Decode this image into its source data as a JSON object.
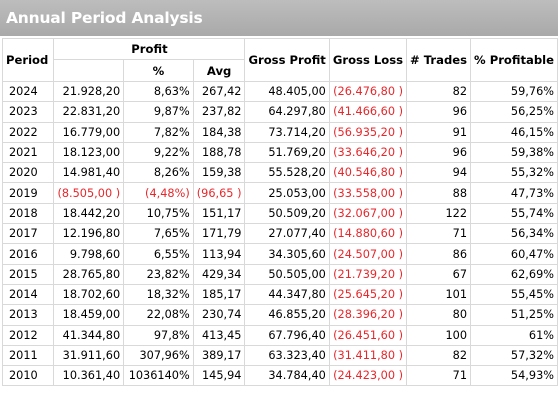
{
  "title": "Annual Period Analysis",
  "headers": {
    "period": "Period",
    "profit": "Profit",
    "pct": "%",
    "avg": "Avg",
    "gross_profit": "Gross Profit",
    "gross_loss": "Gross Loss",
    "trades": "# Trades",
    "pct_profitable": "% Profitable"
  },
  "rows": [
    {
      "period": "2024",
      "profit": "21.928,20",
      "pct": "8,63%",
      "avg": "267,42",
      "gross_profit": "48.405,00",
      "gross_loss": "(26.476,80 )",
      "trades": "82",
      "pct_profitable": "59,76%",
      "neg_profit": false
    },
    {
      "period": "2023",
      "profit": "22.831,20",
      "pct": "9,87%",
      "avg": "237,82",
      "gross_profit": "64.297,80",
      "gross_loss": "(41.466,60 )",
      "trades": "96",
      "pct_profitable": "56,25%",
      "neg_profit": false
    },
    {
      "period": "2022",
      "profit": "16.779,00",
      "pct": "7,82%",
      "avg": "184,38",
      "gross_profit": "73.714,20",
      "gross_loss": "(56.935,20 )",
      "trades": "91",
      "pct_profitable": "46,15%",
      "neg_profit": false
    },
    {
      "period": "2021",
      "profit": "18.123,00",
      "pct": "9,22%",
      "avg": "188,78",
      "gross_profit": "51.769,20",
      "gross_loss": "(33.646,20 )",
      "trades": "96",
      "pct_profitable": "59,38%",
      "neg_profit": false
    },
    {
      "period": "2020",
      "profit": "14.981,40",
      "pct": "8,26%",
      "avg": "159,38",
      "gross_profit": "55.528,20",
      "gross_loss": "(40.546,80 )",
      "trades": "94",
      "pct_profitable": "55,32%",
      "neg_profit": false
    },
    {
      "period": "2019",
      "profit": "(8.505,00 )",
      "pct": "(4,48%)",
      "avg": "(96,65 )",
      "gross_profit": "25.053,00",
      "gross_loss": "(33.558,00 )",
      "trades": "88",
      "pct_profitable": "47,73%",
      "neg_profit": true
    },
    {
      "period": "2018",
      "profit": "18.442,20",
      "pct": "10,75%",
      "avg": "151,17",
      "gross_profit": "50.509,20",
      "gross_loss": "(32.067,00 )",
      "trades": "122",
      "pct_profitable": "55,74%",
      "neg_profit": false
    },
    {
      "period": "2017",
      "profit": "12.196,80",
      "pct": "7,65%",
      "avg": "171,79",
      "gross_profit": "27.077,40",
      "gross_loss": "(14.880,60 )",
      "trades": "71",
      "pct_profitable": "56,34%",
      "neg_profit": false
    },
    {
      "period": "2016",
      "profit": "9.798,60",
      "pct": "6,55%",
      "avg": "113,94",
      "gross_profit": "34.305,60",
      "gross_loss": "(24.507,00 )",
      "trades": "86",
      "pct_profitable": "60,47%",
      "neg_profit": false
    },
    {
      "period": "2015",
      "profit": "28.765,80",
      "pct": "23,82%",
      "avg": "429,34",
      "gross_profit": "50.505,00",
      "gross_loss": "(21.739,20 )",
      "trades": "67",
      "pct_profitable": "62,69%",
      "neg_profit": false
    },
    {
      "period": "2014",
      "profit": "18.702,60",
      "pct": "18,32%",
      "avg": "185,17",
      "gross_profit": "44.347,80",
      "gross_loss": "(25.645,20 )",
      "trades": "101",
      "pct_profitable": "55,45%",
      "neg_profit": false
    },
    {
      "period": "2013",
      "profit": "18.459,00",
      "pct": "22,08%",
      "avg": "230,74",
      "gross_profit": "46.855,20",
      "gross_loss": "(28.396,20 )",
      "trades": "80",
      "pct_profitable": "51,25%",
      "neg_profit": false
    },
    {
      "period": "2012",
      "profit": "41.344,80",
      "pct": "97,8%",
      "avg": "413,45",
      "gross_profit": "67.796,40",
      "gross_loss": "(26.451,60 )",
      "trades": "100",
      "pct_profitable": "61%",
      "neg_profit": false
    },
    {
      "period": "2011",
      "profit": "31.911,60",
      "pct": "307,96%",
      "avg": "389,17",
      "gross_profit": "63.323,40",
      "gross_loss": "(31.411,80 )",
      "trades": "82",
      "pct_profitable": "57,32%",
      "neg_profit": false
    },
    {
      "period": "2010",
      "profit": "10.361,40",
      "pct": "1036140%",
      "avg": "145,94",
      "gross_profit": "34.784,40",
      "gross_loss": "(24.423,00 )",
      "trades": "71",
      "pct_profitable": "54,93%",
      "neg_profit": false
    }
  ],
  "colors": {
    "title_bar": "#b0b0b0",
    "title_text": "#ffffff",
    "negative": "#e8272b",
    "gridline": "#d9d9d9"
  }
}
